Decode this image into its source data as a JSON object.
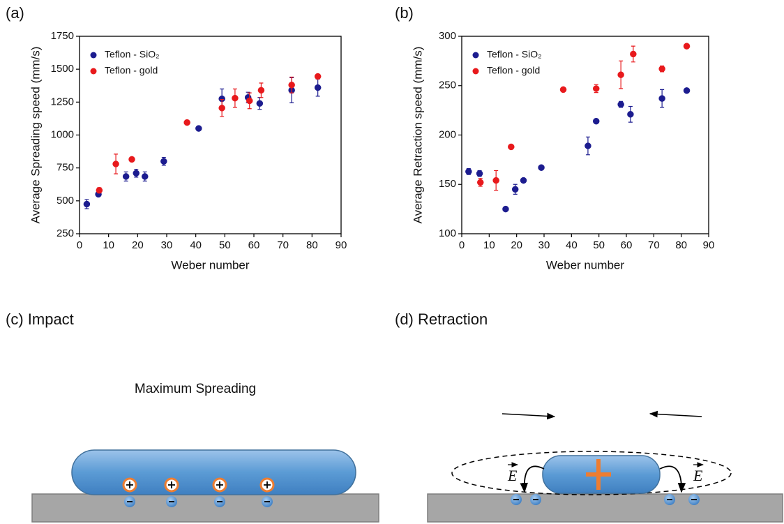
{
  "chart_data": [
    {
      "type": "scatter",
      "label": "(a)",
      "xlabel": "Weber number",
      "ylabel": "Average Spreading speed (mm/s)",
      "xlim": [
        0,
        90
      ],
      "xticks": [
        0,
        10,
        20,
        30,
        40,
        50,
        60,
        70,
        80,
        90
      ],
      "ylim": [
        250,
        1750
      ],
      "yticks": [
        250,
        500,
        750,
        1000,
        1250,
        1500,
        1750
      ],
      "legend": "upper left",
      "series": [
        {
          "name": "Teflon - SiO₂",
          "color": "#1c1c8f",
          "x": [
            2.5,
            6.5,
            16,
            19.5,
            22.5,
            29,
            41,
            49,
            58,
            62,
            73,
            82
          ],
          "values": [
            475,
            550,
            685,
            710,
            685,
            800,
            1050,
            1275,
            1285,
            1240,
            1340,
            1360
          ],
          "errors": [
            35,
            15,
            35,
            30,
            35,
            30,
            0,
            75,
            40,
            45,
            95,
            65
          ]
        },
        {
          "name": "Teflon - gold",
          "color": "#e8191c",
          "x": [
            6.8,
            12.5,
            18,
            37,
            49,
            53.5,
            58.5,
            62.5,
            73,
            82
          ],
          "values": [
            580,
            780,
            815,
            1095,
            1205,
            1280,
            1260,
            1340,
            1380,
            1445
          ],
          "errors": [
            20,
            75,
            0,
            0,
            65,
            70,
            60,
            55,
            60,
            15
          ]
        }
      ]
    },
    {
      "type": "scatter",
      "label": "(b)",
      "xlabel": "Weber number",
      "ylabel": "Average Retraction speed (mm/s)",
      "xlim": [
        0,
        90
      ],
      "xticks": [
        0,
        10,
        20,
        30,
        40,
        50,
        60,
        70,
        80,
        90
      ],
      "ylim": [
        100,
        300
      ],
      "yticks": [
        100,
        150,
        200,
        250,
        300
      ],
      "legend": "upper left",
      "series": [
        {
          "name": "Teflon - SiO₂",
          "color": "#1c1c8f",
          "x": [
            2.5,
            6.5,
            16,
            19.5,
            22.5,
            29,
            46,
            49,
            58,
            61.5,
            73,
            82
          ],
          "values": [
            163,
            161,
            125,
            145,
            154,
            167,
            189,
            214,
            231,
            221,
            237,
            245
          ],
          "errors": [
            3,
            3,
            0,
            5,
            1,
            1,
            9,
            2,
            3,
            8,
            9,
            0
          ]
        },
        {
          "name": "Teflon - gold",
          "color": "#e8191c",
          "x": [
            6.8,
            12.5,
            18,
            37,
            49,
            58,
            62.5,
            73,
            82
          ],
          "values": [
            152,
            154,
            188,
            246,
            247,
            261,
            282,
            267,
            290
          ],
          "errors": [
            4,
            10,
            2,
            0,
            4,
            14,
            8,
            3,
            0
          ]
        }
      ]
    }
  ],
  "diagrams": {
    "c": {
      "title": "(c) Impact",
      "caption": "Maximum Spreading"
    },
    "d": {
      "title": "(d) Retraction",
      "field_label": "E"
    }
  }
}
